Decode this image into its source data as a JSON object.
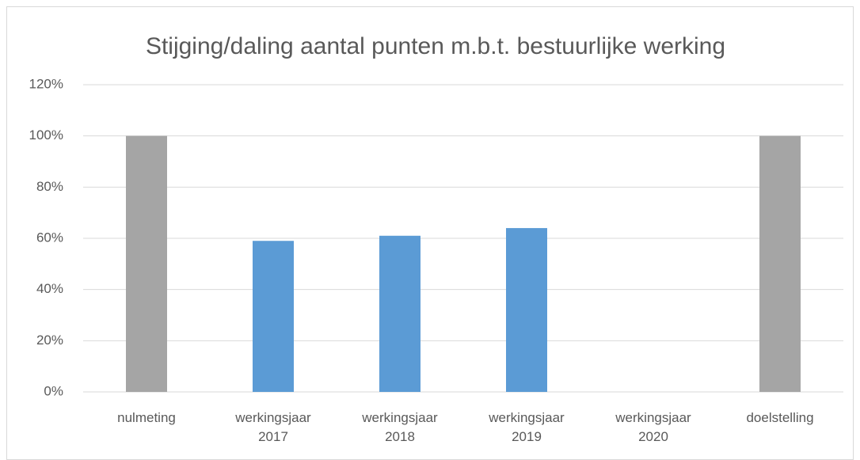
{
  "chart_data": {
    "type": "bar",
    "title": "Stijging/daling aantal punten m.b.t. bestuurlijke werking",
    "categories": [
      "nulmeting",
      "werkingsjaar 2017",
      "werkingsjaar 2018",
      "werkingsjaar 2019",
      "werkingsjaar 2020",
      "doelstelling"
    ],
    "values": [
      100,
      59,
      61,
      64,
      null,
      100
    ],
    "colors": [
      "#a5a5a5",
      "#5b9bd5",
      "#5b9bd5",
      "#5b9bd5",
      "#5b9bd5",
      "#a5a5a5"
    ],
    "ylim": [
      0,
      120
    ],
    "yticks": [
      {
        "value": 0,
        "label": "0%"
      },
      {
        "value": 20,
        "label": "20%"
      },
      {
        "value": 40,
        "label": "40%"
      },
      {
        "value": 60,
        "label": "60%"
      },
      {
        "value": 80,
        "label": "80%"
      },
      {
        "value": 100,
        "label": "100%"
      },
      {
        "value": 120,
        "label": "120%"
      }
    ],
    "grid": true
  }
}
